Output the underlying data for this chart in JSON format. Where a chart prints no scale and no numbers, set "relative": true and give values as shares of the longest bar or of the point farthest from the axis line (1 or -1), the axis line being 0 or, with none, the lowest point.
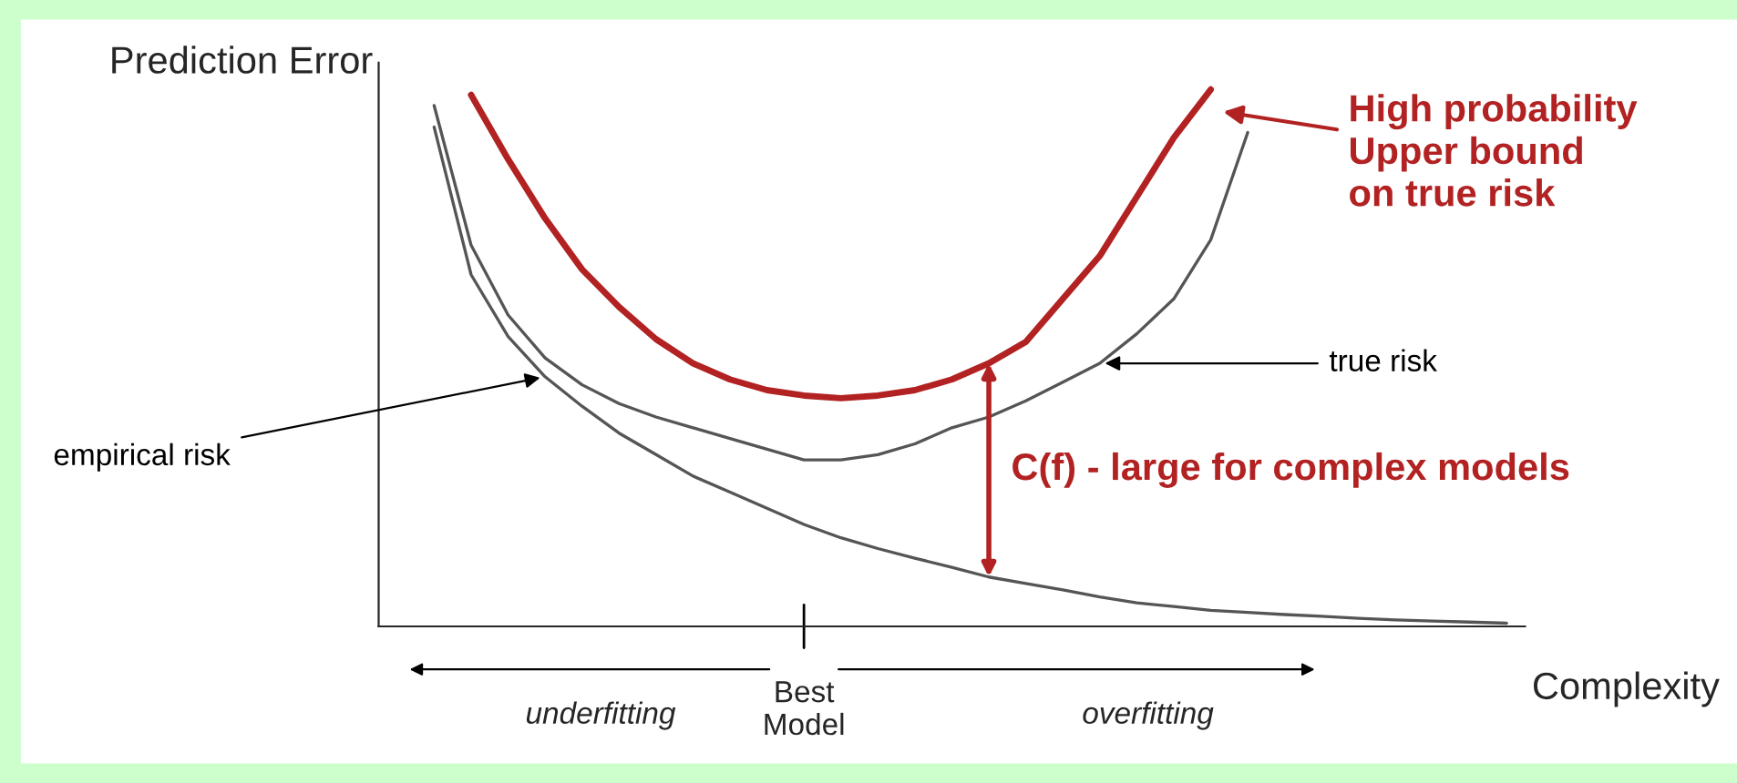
{
  "chart_data": {
    "type": "line",
    "relative": true,
    "xlabel": "Complexity",
    "ylabel": "Prediction Error",
    "categories": [
      null,
      null,
      null,
      null,
      null,
      null,
      null,
      null,
      null,
      null,
      null,
      null,
      null,
      null,
      null,
      null,
      null,
      null,
      null,
      null,
      null,
      null,
      null,
      null,
      null,
      null,
      null,
      null,
      null,
      null,
      null
    ],
    "series": [
      {
        "name": "empirical risk",
        "color": "#555555",
        "values": [
          null,
          0.93,
          0.655,
          0.54,
          0.465,
          0.41,
          0.36,
          0.32,
          0.28,
          0.25,
          0.22,
          0.19,
          0.165,
          0.145,
          0.127,
          0.11,
          0.092,
          0.08,
          0.068,
          0.055,
          0.044,
          0.037,
          0.03,
          0.026,
          0.022,
          0.019,
          0.015,
          0.012,
          0.01,
          0.008,
          0.006
        ]
      },
      {
        "name": "true risk",
        "color": "#555555",
        "values": [
          null,
          0.97,
          0.71,
          0.58,
          0.5,
          0.45,
          0.415,
          0.39,
          0.37,
          0.35,
          0.33,
          0.31,
          0.31,
          0.32,
          0.34,
          0.37,
          0.39,
          0.42,
          0.455,
          0.49,
          0.545,
          0.61,
          0.72,
          0.92,
          null,
          null,
          null,
          null,
          null,
          null,
          null
        ]
      },
      {
        "name": "High probability\nUpper bound\non true risk",
        "color": "#b22222",
        "values": [
          null,
          null,
          0.99,
          0.87,
          0.76,
          0.665,
          0.595,
          0.535,
          0.49,
          0.46,
          0.44,
          0.43,
          0.425,
          0.43,
          0.44,
          0.46,
          0.49,
          0.53,
          0.61,
          0.69,
          0.8,
          0.91,
          1.0,
          null,
          null,
          null,
          null,
          null,
          null,
          null,
          null
        ]
      }
    ],
    "annotations": [
      "C(f) - large for complex models",
      "Best\nModel",
      "underfitting",
      "overfitting"
    ]
  }
}
